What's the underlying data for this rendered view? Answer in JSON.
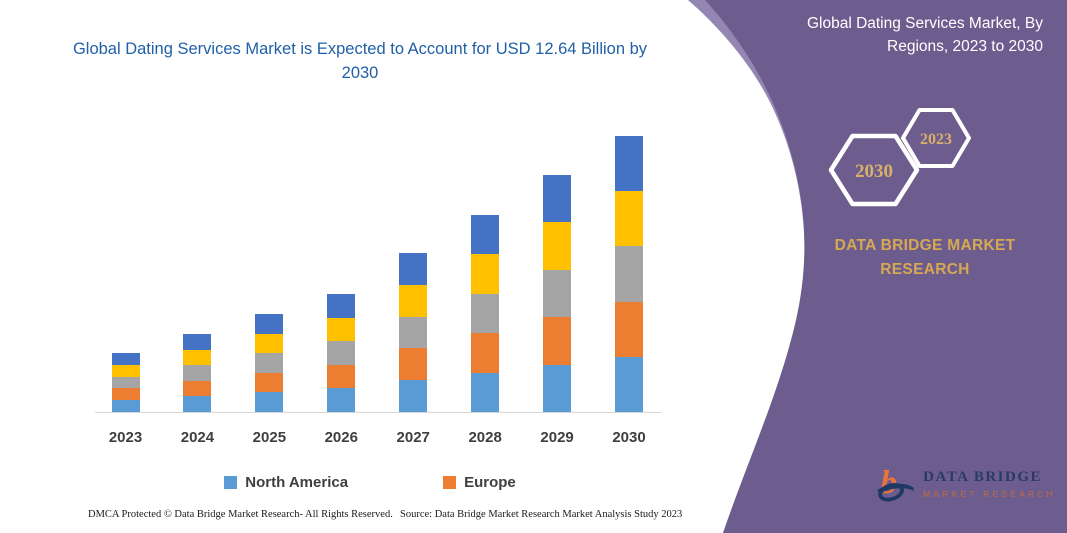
{
  "left": {
    "title": "Global Dating Services Market is Expected to Account for USD 12.64 Billion by 2030",
    "footer_left": "DMCA Protected © Data Bridge Market Research-  All Rights Reserved.",
    "footer_right": "Source: Data Bridge Market Research  Market Analysis Study 2023"
  },
  "right_panel": {
    "title": "Global Dating Services Market, By Regions, 2023 to 2030",
    "hexagon_back_year": "2030",
    "hexagon_front_year": "2023",
    "brand_text": "DATA BRIDGE MARKET RESEARCH",
    "logo_name": "DATA BRIDGE",
    "logo_tagline": "MARKET RESEARCH",
    "colors": {
      "panel_purple": "#6D5D8E",
      "panel_highlight": "#9486B2",
      "accent_gold": "#D6A852"
    }
  },
  "chart_data": {
    "type": "bar",
    "stacked": true,
    "title": "Global Dating Services Market is Expected to Account for USD 12.64 Billion by 2030",
    "unit": "USD Billion",
    "xlabel": "",
    "ylabel": "",
    "y_axis_visible": false,
    "grid": false,
    "legend_position": "bottom",
    "categories": [
      "2023",
      "2024",
      "2025",
      "2026",
      "2027",
      "2028",
      "2029",
      "2030"
    ],
    "totals": [
      2.7,
      3.57,
      4.49,
      5.41,
      7.28,
      9.02,
      10.86,
      12.64
    ],
    "series": [
      {
        "name": "North America",
        "color": "#5B9BD5",
        "values": [
          0.54,
          0.71,
          0.9,
          1.08,
          1.46,
          1.8,
          2.17,
          2.53
        ]
      },
      {
        "name": "Europe",
        "color": "#ED7D31",
        "values": [
          0.54,
          0.71,
          0.9,
          1.08,
          1.46,
          1.8,
          2.17,
          2.53
        ]
      },
      {
        "name": "",
        "color": "#A5A5A5",
        "values": [
          0.54,
          0.71,
          0.9,
          1.08,
          1.46,
          1.8,
          2.17,
          2.53
        ]
      },
      {
        "name": "",
        "color": "#FFC000",
        "values": [
          0.54,
          0.71,
          0.9,
          1.08,
          1.46,
          1.8,
          2.17,
          2.53
        ]
      },
      {
        "name": "",
        "color": "#4472C4",
        "values": [
          0.54,
          0.71,
          0.9,
          1.08,
          1.46,
          1.8,
          2.17,
          2.53
        ]
      }
    ],
    "legend_entries": [
      {
        "label": "North America",
        "color": "#5B9BD5"
      },
      {
        "label": "Europe",
        "color": "#ED7D31"
      }
    ]
  }
}
